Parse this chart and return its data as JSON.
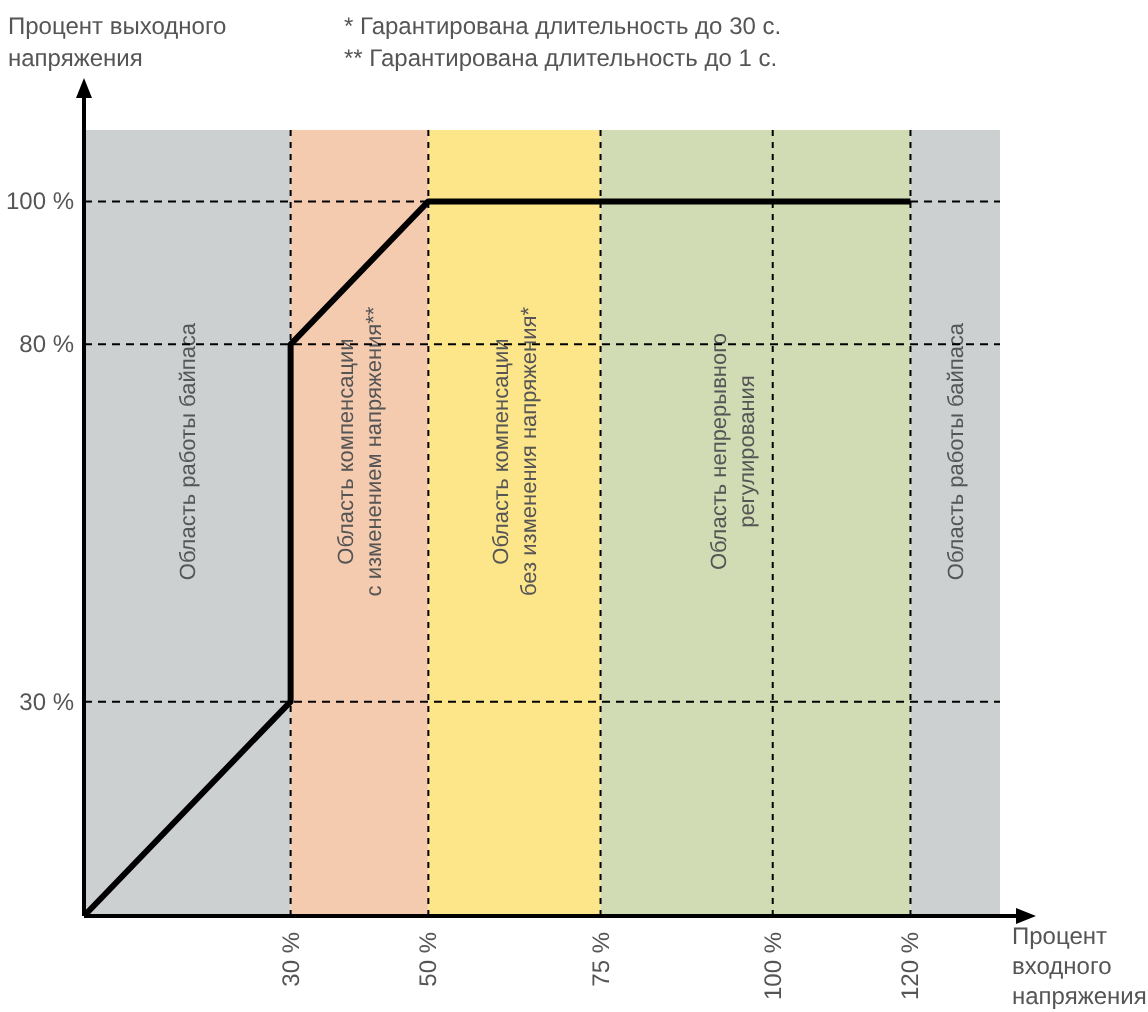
{
  "chart_data": {
    "type": "line",
    "xlabel": "Процент входного напряжения",
    "ylabel": "Процент выходного напряжения",
    "annotations": [
      "* Гарантирована длительность до 30 с.",
      "** Гарантирована длительность до 1 с."
    ],
    "xlim": [
      0,
      133
    ],
    "ylim": [
      0,
      110
    ],
    "xticks": [
      {
        "value": 30,
        "label": "30 %"
      },
      {
        "value": 50,
        "label": "50 %"
      },
      {
        "value": 75,
        "label": "75 %"
      },
      {
        "value": 100,
        "label": "100 %"
      },
      {
        "value": 120,
        "label": "120 %"
      }
    ],
    "yticks": [
      {
        "value": 30,
        "label": "30 %"
      },
      {
        "value": 80,
        "label": "80 %"
      },
      {
        "value": 100,
        "label": "100 %"
      }
    ],
    "grid": true,
    "marker": "none",
    "line_style": "solid",
    "bands": [
      {
        "axis": "x",
        "from": 0,
        "to": 30,
        "label": "Область работы байпаса",
        "color": "#cdd0d1"
      },
      {
        "axis": "x",
        "from": 30,
        "to": 50,
        "label": "Область компенсации\nс изменением напряжения**",
        "color": "#f5cbb0"
      },
      {
        "axis": "x",
        "from": 50,
        "to": 75,
        "label": "Область компенсации\nбез изменения напряжения*",
        "color": "#fde68a"
      },
      {
        "axis": "x",
        "from": 75,
        "to": 120,
        "label": "Область непрерывного\nрегулирования",
        "color": "#d2dcb4"
      },
      {
        "axis": "x",
        "from": 120,
        "to": 133,
        "label": "Область работы байпаса",
        "color": "#cdd0d1"
      }
    ],
    "series": [
      {
        "color": "#000000",
        "x": [
          0,
          30,
          30,
          50,
          120
        ],
        "values": [
          0,
          30,
          80,
          100,
          100
        ]
      }
    ]
  }
}
